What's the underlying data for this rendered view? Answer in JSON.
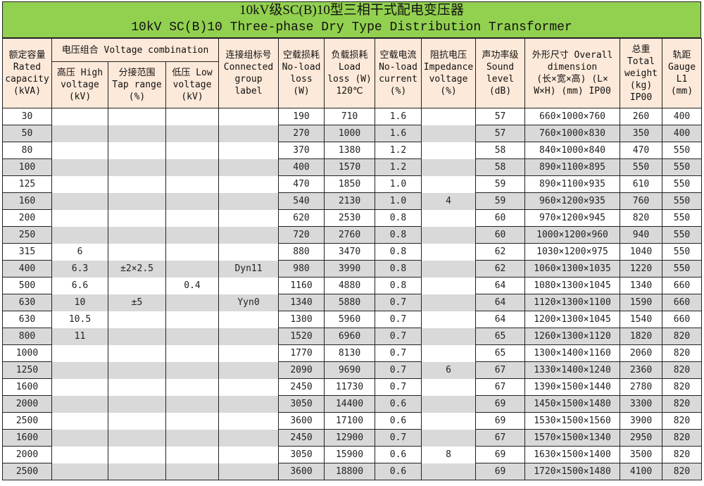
{
  "title": {
    "zh": "10kV级SC(B)10型三相干式配电变压器",
    "en": "10kV SC(B)10 Three-phase Dry Type Distribution Transformer"
  },
  "headers": {
    "capacity": [
      "额定容量",
      "Rated",
      "capacity",
      "(kVA)"
    ],
    "voltage_combination": "电压组合 Voltage combination",
    "high_voltage": [
      "高压 High",
      "voltage",
      "(kV)"
    ],
    "tap_range": [
      "分接范围",
      "Tap range",
      "(%)"
    ],
    "low_voltage": [
      "低压 Low",
      "voltage",
      "(kV)"
    ],
    "group": [
      "连接组标号",
      "Connected",
      "group",
      "label"
    ],
    "noload_loss": [
      "空载损耗",
      "No-load",
      "loss",
      "(W)"
    ],
    "load_loss": [
      "负载损耗",
      "Load",
      "loss (W)",
      "120℃"
    ],
    "noload_current": [
      "空载电流",
      "No-load",
      "current",
      "(%)"
    ],
    "impedance": [
      "阻抗电压",
      "Impedance",
      "voltage",
      "(%)"
    ],
    "sound": [
      "声功率级",
      "Sound",
      "level",
      "(dB)"
    ],
    "dimension": [
      "外形尺寸 Overall",
      "dimension",
      "(长×宽×高) (L×",
      "W×H) (mm) IP00"
    ],
    "weight": [
      "总重",
      "Total",
      "weight",
      "(kg)",
      "IP00"
    ],
    "gauge": [
      "轨距",
      "Gauge",
      "L1",
      "(mm)"
    ]
  },
  "rows": [
    {
      "capacity": "30",
      "hv": "",
      "tap": "",
      "lv": "",
      "group": "",
      "nll": "190",
      "ll": "710",
      "nlc": "1.6",
      "imp": "",
      "sound": "57",
      "dim": "660×1000×760",
      "weight": "260",
      "gauge": "400"
    },
    {
      "capacity": "50",
      "hv": "",
      "tap": "",
      "lv": "",
      "group": "",
      "nll": "270",
      "ll": "1000",
      "nlc": "1.6",
      "imp": "",
      "sound": "57",
      "dim": "760×1000×830",
      "weight": "350",
      "gauge": "400"
    },
    {
      "capacity": "80",
      "hv": "",
      "tap": "",
      "lv": "",
      "group": "",
      "nll": "370",
      "ll": "1380",
      "nlc": "1.2",
      "imp": "",
      "sound": "58",
      "dim": "840×1000×840",
      "weight": "470",
      "gauge": "550"
    },
    {
      "capacity": "100",
      "hv": "",
      "tap": "",
      "lv": "",
      "group": "",
      "nll": "400",
      "ll": "1570",
      "nlc": "1.2",
      "imp": "",
      "sound": "58",
      "dim": "890×1100×895",
      "weight": "550",
      "gauge": "550"
    },
    {
      "capacity": "125",
      "hv": "",
      "tap": "",
      "lv": "",
      "group": "",
      "nll": "470",
      "ll": "1850",
      "nlc": "1.0",
      "imp": "",
      "sound": "59",
      "dim": "890×1100×935",
      "weight": "610",
      "gauge": "550"
    },
    {
      "capacity": "160",
      "hv": "",
      "tap": "",
      "lv": "",
      "group": "",
      "nll": "540",
      "ll": "2130",
      "nlc": "1.0",
      "imp": "4",
      "sound": "59",
      "dim": "960×1200×935",
      "weight": "760",
      "gauge": "550"
    },
    {
      "capacity": "200",
      "hv": "",
      "tap": "",
      "lv": "",
      "group": "",
      "nll": "620",
      "ll": "2530",
      "nlc": "0.8",
      "imp": "",
      "sound": "60",
      "dim": "970×1200×945",
      "weight": "820",
      "gauge": "550"
    },
    {
      "capacity": "250",
      "hv": "",
      "tap": "",
      "lv": "",
      "group": "",
      "nll": "720",
      "ll": "2760",
      "nlc": "0.8",
      "imp": "",
      "sound": "60",
      "dim": "1000×1200×960",
      "weight": "940",
      "gauge": "550"
    },
    {
      "capacity": "315",
      "hv": "6",
      "tap": "",
      "lv": "",
      "group": "",
      "nll": "880",
      "ll": "3470",
      "nlc": "0.8",
      "imp": "",
      "sound": "62",
      "dim": "1030×1200×975",
      "weight": "1040",
      "gauge": "550"
    },
    {
      "capacity": "400",
      "hv": "6.3",
      "tap": "±2×2.5",
      "lv": "",
      "group": "Dyn11",
      "nll": "980",
      "ll": "3990",
      "nlc": "0.8",
      "imp": "",
      "sound": "62",
      "dim": "1060×1300×1035",
      "weight": "1220",
      "gauge": "550"
    },
    {
      "capacity": "500",
      "hv": "6.6",
      "tap": "",
      "lv": "0.4",
      "group": "",
      "nll": "1160",
      "ll": "4880",
      "nlc": "0.8",
      "imp": "",
      "sound": "64",
      "dim": "1080×1300×1045",
      "weight": "1340",
      "gauge": "660"
    },
    {
      "capacity": "630",
      "hv": "10",
      "tap": "±5",
      "lv": "",
      "group": "Yyn0",
      "nll": "1340",
      "ll": "5880",
      "nlc": "0.7",
      "imp": "",
      "sound": "64",
      "dim": "1120×1300×1100",
      "weight": "1590",
      "gauge": "660"
    },
    {
      "capacity": "630",
      "hv": "10.5",
      "tap": "",
      "lv": "",
      "group": "",
      "nll": "1300",
      "ll": "5960",
      "nlc": "0.7",
      "imp": "",
      "sound": "64",
      "dim": "1200×1300×1045",
      "weight": "1540",
      "gauge": "660"
    },
    {
      "capacity": "800",
      "hv": "11",
      "tap": "",
      "lv": "",
      "group": "",
      "nll": "1520",
      "ll": "6960",
      "nlc": "0.7",
      "imp": "",
      "sound": "65",
      "dim": "1260×1300×1120",
      "weight": "1820",
      "gauge": "820"
    },
    {
      "capacity": "1000",
      "hv": "",
      "tap": "",
      "lv": "",
      "group": "",
      "nll": "1770",
      "ll": "8130",
      "nlc": "0.7",
      "imp": "",
      "sound": "65",
      "dim": "1300×1400×1160",
      "weight": "2060",
      "gauge": "820"
    },
    {
      "capacity": "1250",
      "hv": "",
      "tap": "",
      "lv": "",
      "group": "",
      "nll": "2090",
      "ll": "9690",
      "nlc": "0.7",
      "imp": "6",
      "sound": "67",
      "dim": "1330×1400×1240",
      "weight": "2360",
      "gauge": "820"
    },
    {
      "capacity": "1600",
      "hv": "",
      "tap": "",
      "lv": "",
      "group": "",
      "nll": "2450",
      "ll": "11730",
      "nlc": "0.7",
      "imp": "",
      "sound": "67",
      "dim": "1390×1500×1440",
      "weight": "2780",
      "gauge": "820"
    },
    {
      "capacity": "2000",
      "hv": "",
      "tap": "",
      "lv": "",
      "group": "",
      "nll": "3050",
      "ll": "14400",
      "nlc": "0.6",
      "imp": "",
      "sound": "69",
      "dim": "1450×1500×1480",
      "weight": "3300",
      "gauge": "820"
    },
    {
      "capacity": "2500",
      "hv": "",
      "tap": "",
      "lv": "",
      "group": "",
      "nll": "3600",
      "ll": "17100",
      "nlc": "0.6",
      "imp": "",
      "sound": "69",
      "dim": "1530×1500×1560",
      "weight": "3900",
      "gauge": "820"
    },
    {
      "capacity": "1600",
      "hv": "",
      "tap": "",
      "lv": "",
      "group": "",
      "nll": "2450",
      "ll": "12900",
      "nlc": "0.7",
      "imp": "",
      "sound": "67",
      "dim": "1570×1500×1340",
      "weight": "2950",
      "gauge": "820"
    },
    {
      "capacity": "2000",
      "hv": "",
      "tap": "",
      "lv": "",
      "group": "",
      "nll": "3050",
      "ll": "15900",
      "nlc": "0.6",
      "imp": "8",
      "sound": "69",
      "dim": "1630×1500×1400",
      "weight": "3500",
      "gauge": "820"
    },
    {
      "capacity": "2500",
      "hv": "",
      "tap": "",
      "lv": "",
      "group": "",
      "nll": "3600",
      "ll": "18800",
      "nlc": "0.6",
      "imp": "",
      "sound": "69",
      "dim": "1720×1500×1480",
      "weight": "4100",
      "gauge": "820"
    }
  ],
  "colors": {
    "title_bg": "#92d050",
    "header_bg": "#fde9d9",
    "stripe": "#d9d9d9"
  }
}
